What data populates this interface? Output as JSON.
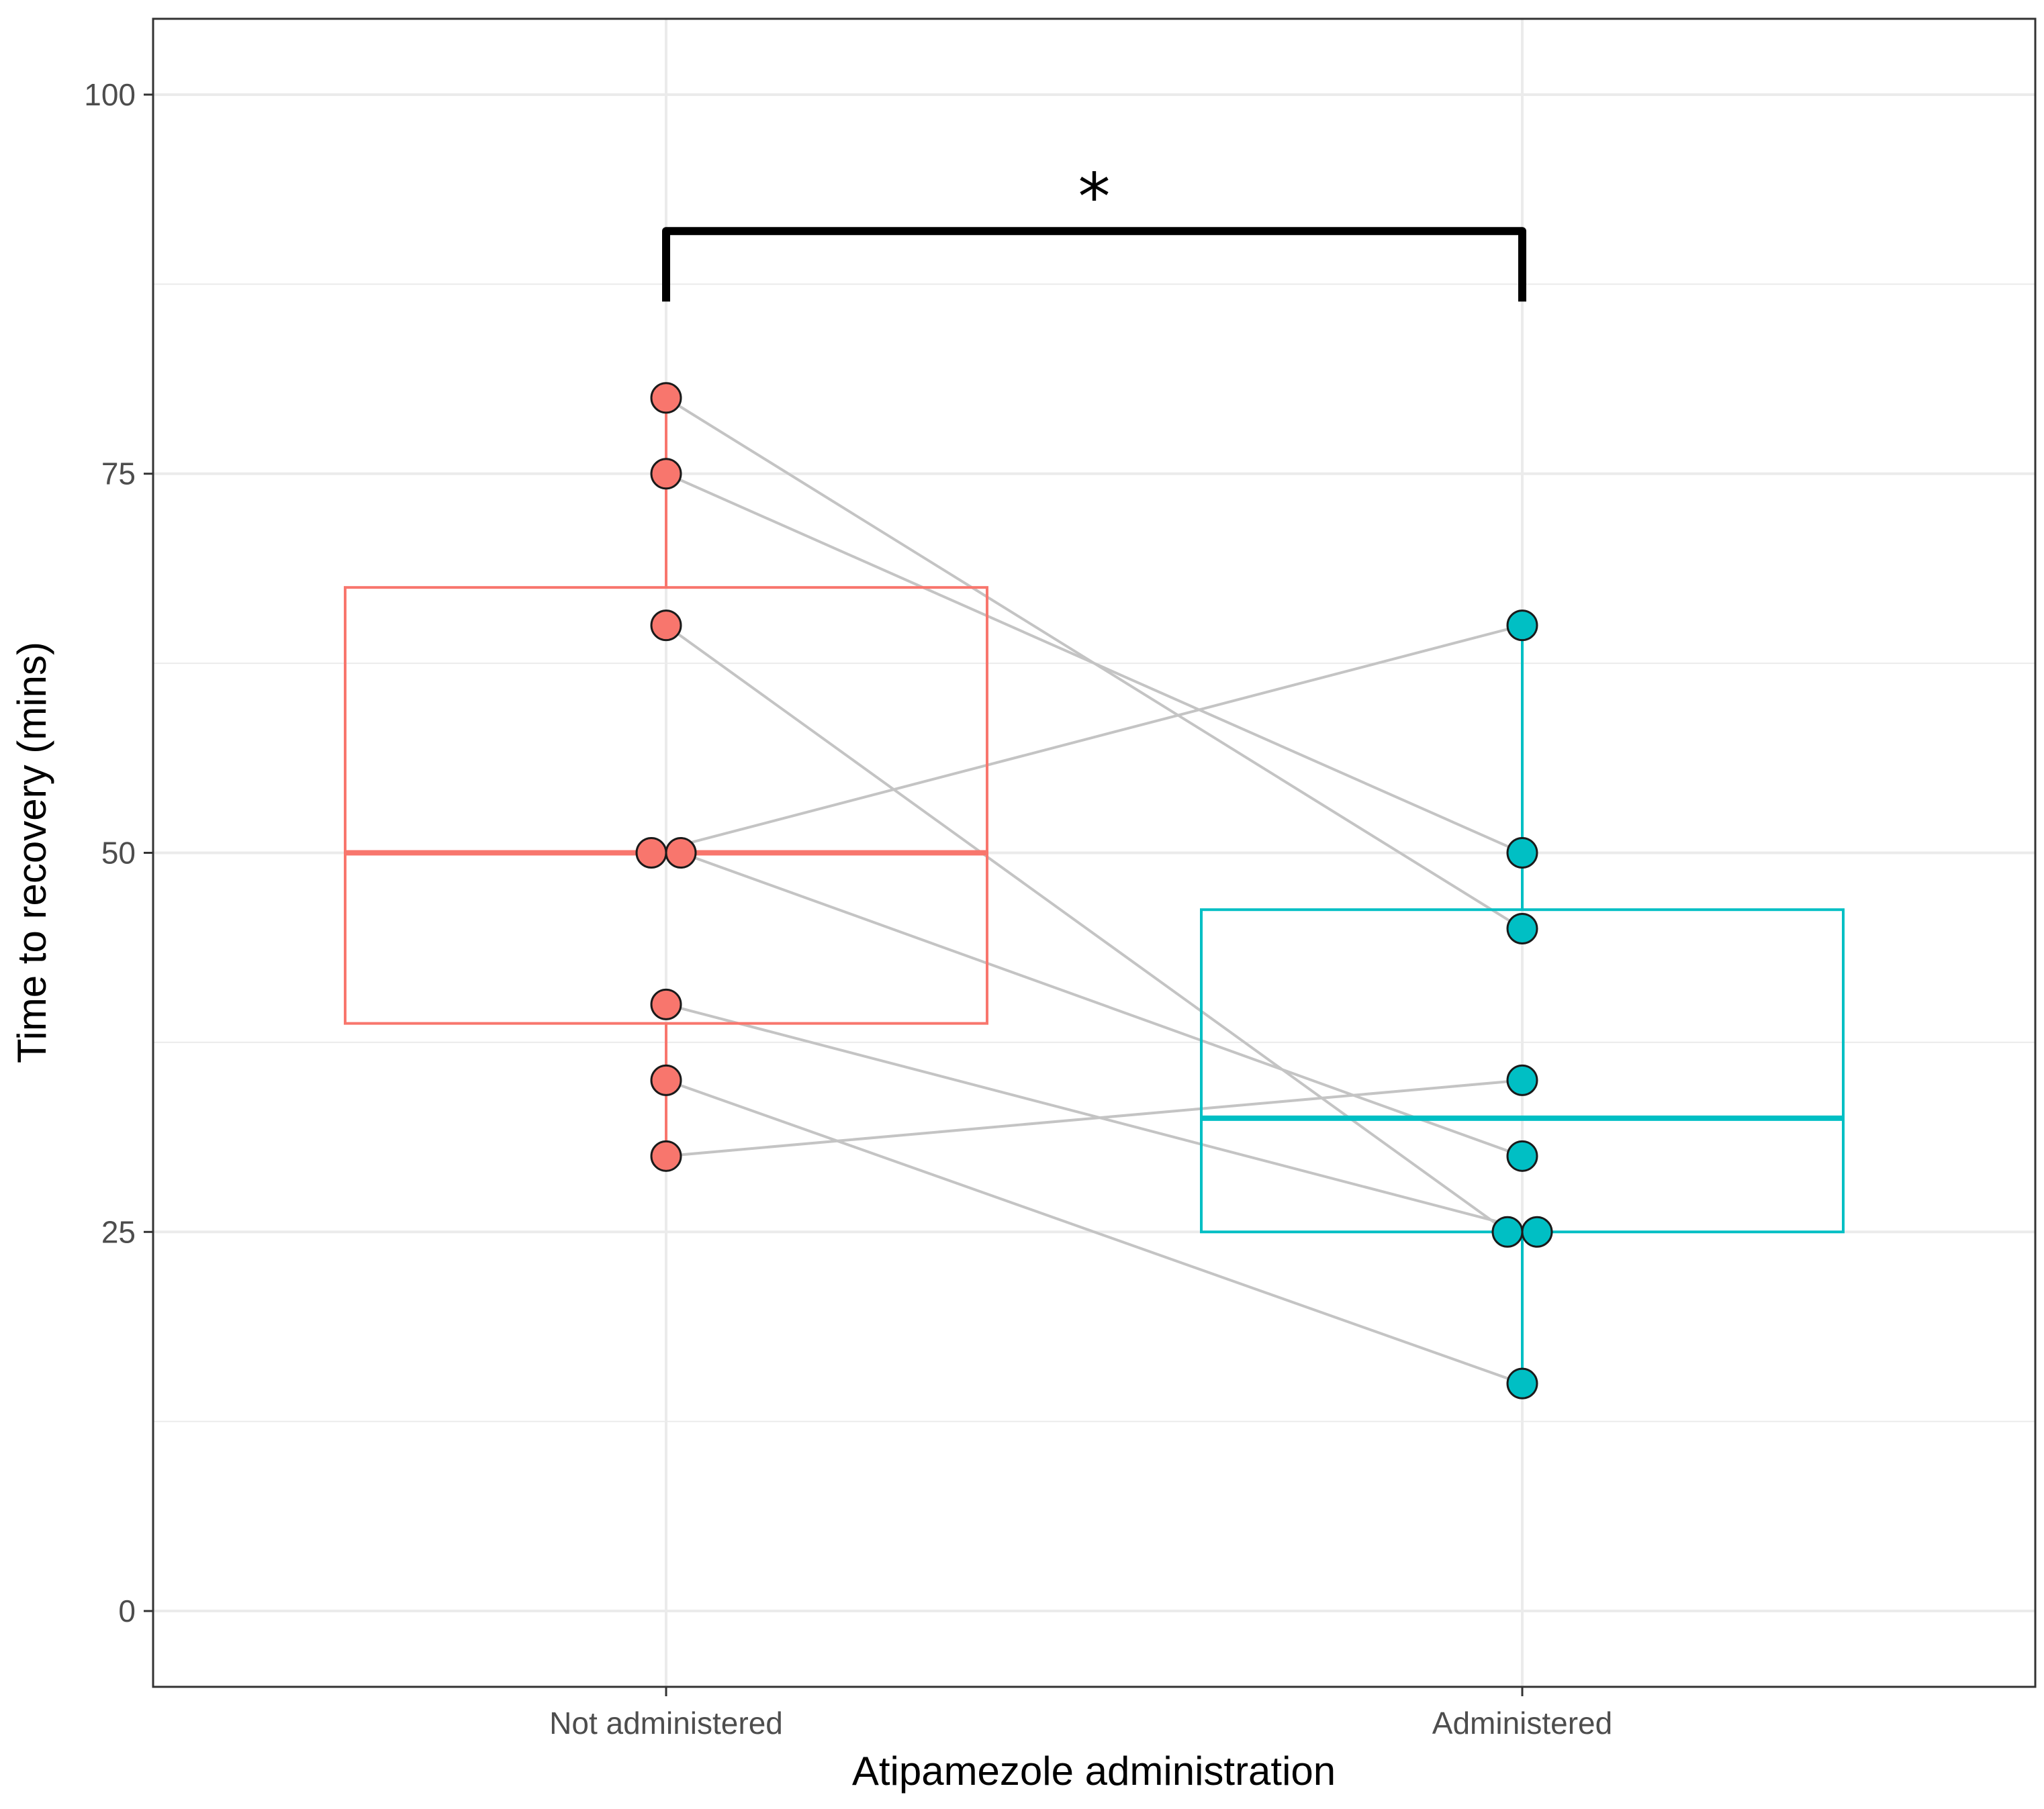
{
  "chart_data": {
    "type": "box",
    "xlabel": "Atipamezole administration",
    "ylabel": "Time to recovery (mins)",
    "ylim": [
      -5,
      105
    ],
    "y_ticks": [
      0,
      25,
      50,
      75,
      100
    ],
    "y_minor_ticks": [
      12.5,
      37.5,
      62.5,
      87.5
    ],
    "grid": true,
    "categories": [
      "Not administered",
      "Administered"
    ],
    "groups": [
      {
        "name": "Not administered",
        "color": "#F8766D",
        "box": {
          "lower_whisker": 30,
          "q1": 38.75,
          "median": 50,
          "q3": 67.5,
          "upper_whisker": 80
        },
        "points": [
          80,
          75,
          65,
          50,
          50,
          40,
          35,
          30
        ]
      },
      {
        "name": "Administered",
        "color": "#00BFC4",
        "box": {
          "lower_whisker": 15,
          "q1": 25,
          "median": 32.5,
          "q3": 46.25,
          "upper_whisker": 65
        },
        "points": [
          65,
          50,
          45,
          35,
          30,
          25,
          25,
          15
        ]
      }
    ],
    "paired_lines": [
      {
        "from": 80,
        "to": 45
      },
      {
        "from": 75,
        "to": 50
      },
      {
        "from": 65,
        "to": 25
      },
      {
        "from": 50,
        "to": 65
      },
      {
        "from": 50,
        "to": 30
      },
      {
        "from": 40,
        "to": 25
      },
      {
        "from": 35,
        "to": 15
      },
      {
        "from": 30,
        "to": 35
      }
    ],
    "significance": {
      "label": "*",
      "between": [
        "Not administered",
        "Administered"
      ],
      "y": 91
    }
  },
  "colors": {
    "panel_border": "#333333",
    "grid": "#ebebeb",
    "pair_line": "#c4c4c4",
    "point_stroke": "#1a1a1a",
    "bracket": "#000000"
  }
}
